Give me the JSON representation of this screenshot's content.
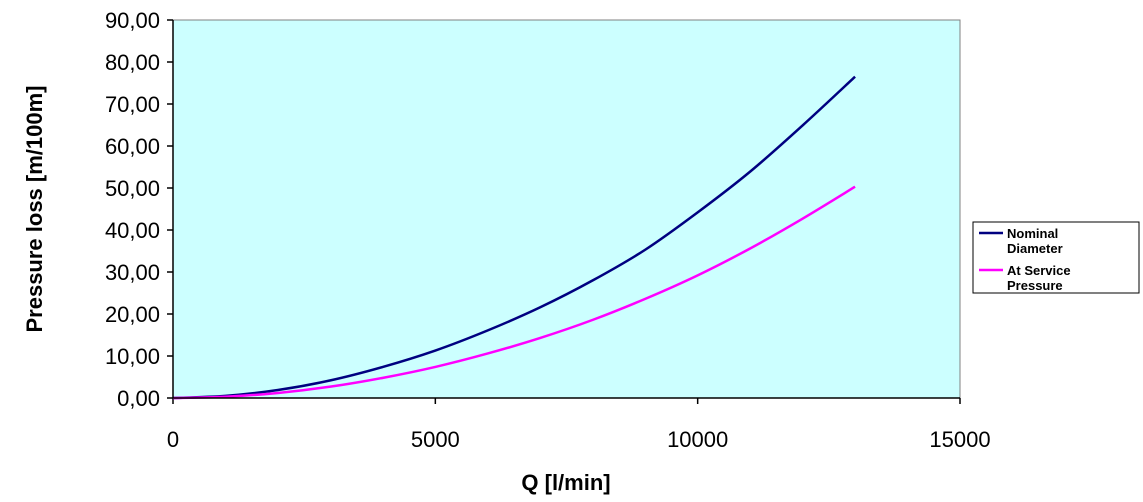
{
  "chart_data": {
    "type": "line",
    "title": "",
    "xlabel": "Q [l/min]",
    "ylabel": "Pressure loss [m/100m]",
    "xlim": [
      0,
      15000
    ],
    "ylim": [
      0,
      90
    ],
    "x_ticks": [
      "0",
      "5000",
      "10000",
      "15000"
    ],
    "y_ticks": [
      "0,00",
      "10,00",
      "20,00",
      "30,00",
      "40,00",
      "50,00",
      "60,00",
      "70,00",
      "80,00",
      "90,00"
    ],
    "grid": false,
    "legend_position": "right",
    "plot_background": "#ccffff",
    "series": [
      {
        "name_lines": [
          "Nominal",
          "Diameter"
        ],
        "color": "#000080",
        "x": [
          0,
          1000,
          2000,
          3000,
          4000,
          5000,
          6000,
          7000,
          8000,
          9000,
          10000,
          11000,
          12000,
          13000
        ],
        "y": [
          0.0,
          0.5,
          1.9,
          4.2,
          7.4,
          11.3,
          16.1,
          21.6,
          28.0,
          35.3,
          44.2,
          53.9,
          64.9,
          76.5
        ]
      },
      {
        "name_lines": [
          "At Service",
          "Pressure"
        ],
        "color": "#ff00ff",
        "x": [
          0,
          1000,
          2000,
          3000,
          4000,
          5000,
          6000,
          7000,
          8000,
          9000,
          10000,
          11000,
          12000,
          13000
        ],
        "y": [
          0.0,
          0.3,
          1.2,
          2.7,
          4.8,
          7.4,
          10.6,
          14.3,
          18.6,
          23.6,
          29.2,
          35.6,
          42.7,
          50.3
        ]
      }
    ]
  }
}
